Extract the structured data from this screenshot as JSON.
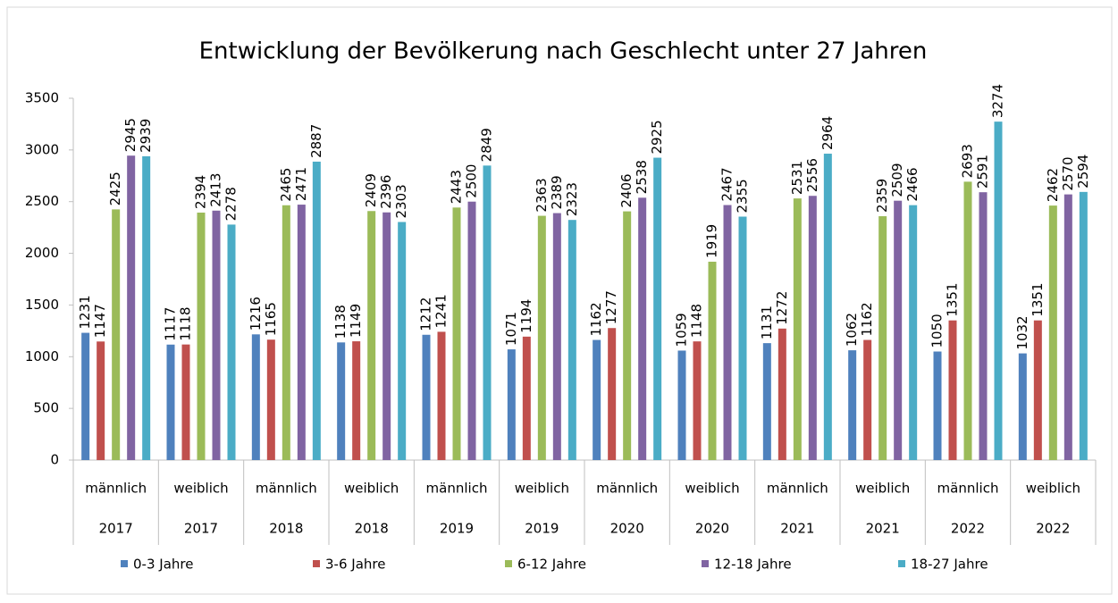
{
  "chart_data": {
    "type": "bar",
    "title": "Entwicklung der Bevölkerung nach Geschlecht unter 27 Jahren",
    "categories": [
      "männlich",
      "weiblich",
      "männlich",
      "weiblich",
      "männlich",
      "weiblich",
      "männlich",
      "weiblich",
      "männlich",
      "weiblich",
      "männlich",
      "weiblich"
    ],
    "category_groups": [
      "2017",
      "2017",
      "2018",
      "2018",
      "2019",
      "2019",
      "2020",
      "2020",
      "2021",
      "2021",
      "2022",
      "2022"
    ],
    "series": [
      {
        "name": "0-3 Jahre",
        "color": "#4f81bd",
        "values": [
          1231,
          1117,
          1216,
          1138,
          1212,
          1071,
          1162,
          1059,
          1131,
          1062,
          1050,
          1032
        ]
      },
      {
        "name": "3-6 Jahre",
        "color": "#c0504d",
        "values": [
          1147,
          1118,
          1165,
          1149,
          1241,
          1194,
          1277,
          1148,
          1272,
          1162,
          1351,
          1351
        ]
      },
      {
        "name": "6-12 Jahre",
        "color": "#9bbb59",
        "values": [
          2425,
          2394,
          2465,
          2409,
          2443,
          2363,
          2406,
          1919,
          2531,
          2359,
          2693,
          2462
        ]
      },
      {
        "name": "12-18 Jahre",
        "color": "#8064a2",
        "values": [
          2945,
          2413,
          2471,
          2396,
          2500,
          2389,
          2538,
          2467,
          2556,
          2509,
          2591,
          2570
        ]
      },
      {
        "name": "18-27 Jahre",
        "color": "#4bacc6",
        "values": [
          2939,
          2278,
          2887,
          2303,
          2849,
          2323,
          2925,
          2355,
          2964,
          2466,
          3274,
          2594
        ]
      }
    ],
    "ylim": [
      0,
      3500
    ],
    "yticks": [
      0,
      500,
      1000,
      1500,
      2000,
      2500,
      3000,
      3500
    ],
    "grid": false,
    "legend": "bottom"
  }
}
